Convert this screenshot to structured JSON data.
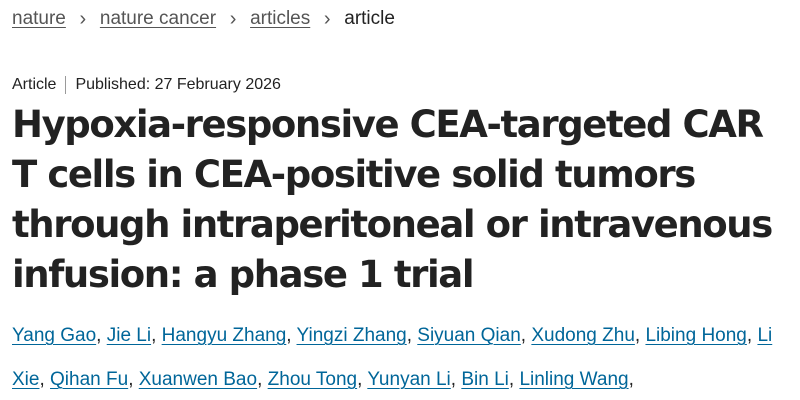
{
  "breadcrumb": {
    "items": [
      "nature",
      "nature cancer",
      "articles"
    ],
    "current": "article",
    "separator": "›"
  },
  "meta": {
    "type": "Article",
    "published": "Published: 27 February 2026"
  },
  "title": "Hypoxia-responsive CEA-targeted CAR T cells in CEA-positive solid tumors through intraperitoneal or intravenous infusion: a phase 1 trial",
  "authors": [
    "Yang Gao",
    "Jie Li",
    "Hangyu Zhang",
    "Yingzi Zhang",
    "Siyuan Qian",
    "Xudong Zhu",
    "Libing Hong",
    "Li Xie",
    "Qihan Fu",
    "Xuanwen Bao",
    "Zhou Tong",
    "Yunyan Li",
    "Bin Li",
    "Linling Wang"
  ],
  "colors": {
    "link": "#006699",
    "text": "#222222",
    "muted": "#555555"
  }
}
